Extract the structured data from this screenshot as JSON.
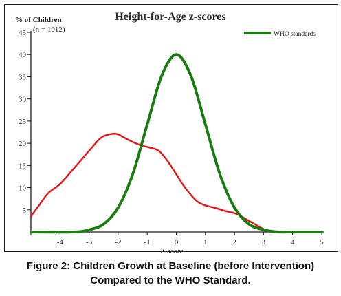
{
  "chart_data": {
    "type": "line",
    "title": "Height-for-Age z-scores",
    "ylabel": "% of Children",
    "sample_note": "(n = 1012)",
    "xlabel": "Z-score",
    "xlim": [
      -5,
      5
    ],
    "ylim": [
      0,
      45
    ],
    "x_ticks": [
      -4,
      -3,
      -2,
      -1,
      0,
      1,
      2,
      3,
      4,
      5
    ],
    "y_ticks": [
      5,
      10,
      15,
      20,
      25,
      30,
      35,
      40,
      45
    ],
    "legend_position": "top-right",
    "series": [
      {
        "name": "",
        "color": "#ee1111",
        "x": [
          -5,
          -4.7,
          -4.4,
          -4.0,
          -3.5,
          -3.0,
          -2.6,
          -2.3,
          -2.05,
          -1.8,
          -1.5,
          -1.2,
          -0.9,
          -0.6,
          -0.3,
          0.0,
          0.3,
          0.7,
          1.0,
          1.3,
          1.7,
          2.1,
          2.5,
          2.9,
          3.2,
          3.5
        ],
        "values": [
          3.5,
          6.2,
          8.8,
          10.8,
          14.5,
          18.3,
          21.2,
          22.0,
          22.1,
          21.3,
          20.3,
          19.5,
          19.0,
          18.3,
          16.0,
          13.0,
          10.0,
          7.0,
          6.0,
          5.5,
          4.7,
          4.0,
          2.5,
          1.0,
          0.2,
          0.0
        ]
      },
      {
        "name": "WHO standards",
        "color": "#1a7d12",
        "x": [
          -5,
          -3.5,
          -3.0,
          -2.5,
          -2.0,
          -1.5,
          -1.0,
          -0.5,
          0.0,
          0.5,
          1.0,
          1.5,
          2.0,
          2.5,
          3.0,
          3.5,
          4.0,
          5.0
        ],
        "values": [
          0,
          0,
          0.2,
          0.7,
          2.2,
          5.2,
          9.7,
          14.1,
          16.0,
          14.1,
          9.7,
          5.2,
          2.2,
          0.7,
          0.2,
          0,
          0,
          0
        ],
        "scale_to_peak": 40
      }
    ]
  },
  "caption": {
    "line1": "Figure 2: Children Growth at Baseline (before Intervention)",
    "line2": "Compared to the WHO Standard."
  },
  "colors": {
    "axis": "#1a1a1a",
    "title": "#2b2b2b"
  }
}
